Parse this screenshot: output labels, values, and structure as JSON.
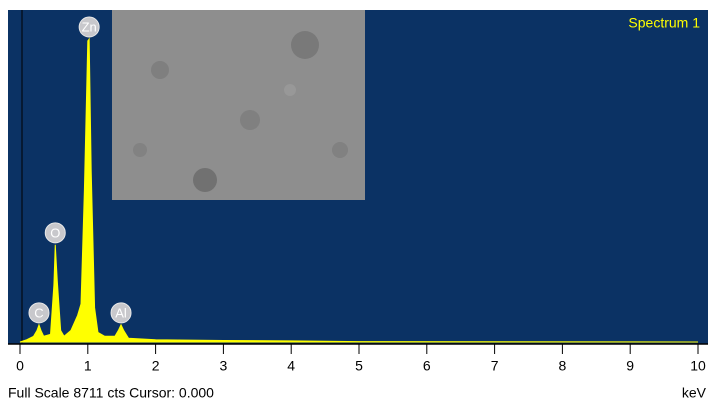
{
  "chart_data": {
    "type": "area",
    "title": "Spectrum 1",
    "x_label": "keV",
    "footer": "Full Scale 8711 cts Cursor: 0.000",
    "series": [
      {
        "name": "Spectrum 1",
        "color": "#ffff00",
        "x": [
          0,
          0.1,
          0.2,
          0.25,
          0.28,
          0.31,
          0.35,
          0.45,
          0.5,
          0.52,
          0.55,
          0.6,
          0.65,
          0.75,
          0.85,
          0.9,
          0.95,
          1.0,
          1.02,
          1.05,
          1.1,
          1.15,
          1.25,
          1.4,
          1.45,
          1.49,
          1.53,
          1.6,
          1.8,
          2.0,
          2.5,
          3.0,
          4.0,
          5.0,
          10
        ],
        "values": [
          0,
          60,
          150,
          300,
          450,
          300,
          150,
          200,
          1500,
          2550,
          1600,
          300,
          150,
          300,
          700,
          1000,
          4000,
          7900,
          7950,
          4500,
          900,
          250,
          150,
          150,
          300,
          450,
          300,
          100,
          80,
          60,
          50,
          40,
          30,
          10,
          0
        ]
      }
    ],
    "peaks": [
      {
        "label": "C",
        "x": 0.28
      },
      {
        "label": "O",
        "x": 0.52
      },
      {
        "label": "Zn",
        "x": 1.02
      },
      {
        "label": "Al",
        "x": 1.49
      }
    ],
    "xlim": [
      0,
      10
    ],
    "xticks": [
      0,
      1,
      2,
      3,
      4,
      5,
      6,
      7,
      8,
      9,
      10
    ],
    "ylim": [
      0,
      8711
    ],
    "background": "#0b3264"
  }
}
